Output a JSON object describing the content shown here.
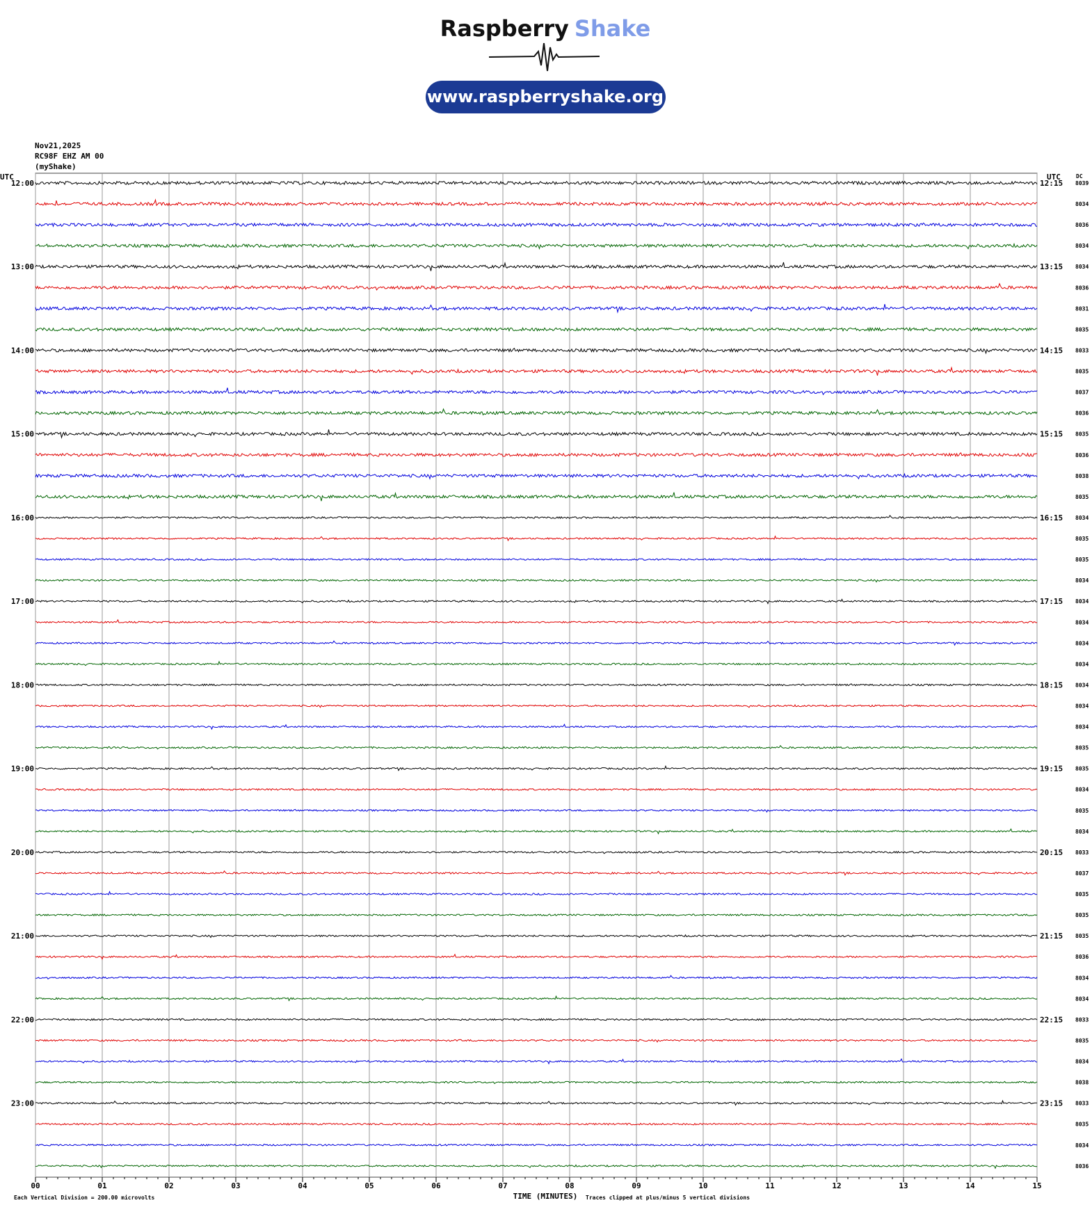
{
  "header": {
    "brand_dark": "Raspberry",
    "brand_light": "Shake",
    "url": "www.raspberryshake.org"
  },
  "info": {
    "date": "Nov21,2025",
    "station": "RC98F EHZ AM 00",
    "source": "(myShake)"
  },
  "axes": {
    "left_unit": "UTC",
    "right_unit": "UTC",
    "dc_unit": "DC",
    "x_title": "TIME (MINUTES)",
    "x_ticks": [
      "00",
      "01",
      "02",
      "03",
      "04",
      "05",
      "06",
      "07",
      "08",
      "09",
      "10",
      "11",
      "12",
      "13",
      "14",
      "15"
    ]
  },
  "trace_colors": [
    "#000000",
    "#e00000",
    "#0000dd",
    "#006400"
  ],
  "hours": [
    {
      "left": "12:00",
      "right": "12:15"
    },
    {
      "left": "13:00",
      "right": "13:15"
    },
    {
      "left": "14:00",
      "right": "14:15"
    },
    {
      "left": "15:00",
      "right": "15:15"
    },
    {
      "left": "16:00",
      "right": "16:15"
    },
    {
      "left": "17:00",
      "right": "17:15"
    },
    {
      "left": "18:00",
      "right": "18:15"
    },
    {
      "left": "19:00",
      "right": "19:15"
    },
    {
      "left": "20:00",
      "right": "20:15"
    },
    {
      "left": "21:00",
      "right": "21:15"
    },
    {
      "left": "22:00",
      "right": "22:15"
    },
    {
      "left": "23:00",
      "right": "23:15"
    }
  ],
  "dc": [
    8039,
    8034,
    8036,
    8034,
    8034,
    8036,
    8031,
    8035,
    8033,
    8035,
    8037,
    8036,
    8035,
    8036,
    8038,
    8035,
    8034,
    8035,
    8035,
    8034,
    8034,
    8034,
    8034,
    8034,
    8034,
    8034,
    8034,
    8035,
    8035,
    8034,
    8035,
    8034,
    8033,
    8037,
    8035,
    8035,
    8035,
    8036,
    8034,
    8034,
    8033,
    8035,
    8034,
    8038,
    8033,
    8035,
    8034,
    8036
  ],
  "footer": {
    "scale": "Each Vertical Division =  200.00 microvolts",
    "clip": "Traces clipped at plus/minus 5 vertical divisions"
  }
}
